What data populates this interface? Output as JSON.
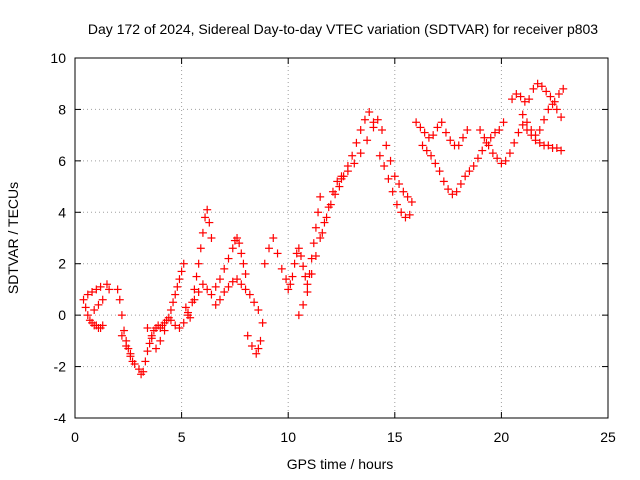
{
  "chart_data": {
    "type": "scatter",
    "title": "Day 172 of 2024, Sidereal Day-to-day VTEC variation (SDTVAR) for receiver p803",
    "xlabel": "GPS time / hours",
    "ylabel": "SDTVAR / TECUs",
    "xlim": [
      0,
      25
    ],
    "ylim": [
      -4,
      10
    ],
    "x_ticks": [
      0,
      5,
      10,
      15,
      20,
      25
    ],
    "y_ticks": [
      -4,
      -2,
      0,
      2,
      4,
      6,
      8,
      10
    ],
    "x_tick_labels": [
      "0",
      "5",
      "10",
      "15",
      "20",
      "25"
    ],
    "y_tick_labels": [
      "-4",
      "-2",
      "0",
      "2",
      "4",
      "6",
      "8",
      "10"
    ],
    "grid": true,
    "marker": "+",
    "series": [
      {
        "color": "#ff0000",
        "x": [
          0.4,
          0.5,
          0.6,
          0.7,
          0.8,
          0.9,
          1.0,
          1.1,
          1.2,
          1.3,
          0.6,
          0.8,
          1.0,
          1.2,
          1.5,
          1.6,
          0.9,
          1.1,
          1.3,
          2.0,
          2.1,
          2.2,
          2.3,
          2.4,
          2.5,
          2.6,
          2.7,
          2.2,
          2.4,
          2.6,
          2.8,
          3.0,
          3.1,
          3.2,
          3.3,
          3.4,
          3.5,
          3.6,
          3.7,
          3.8,
          3.9,
          4.0,
          4.1,
          4.2,
          4.3,
          4.4,
          3.4,
          3.6,
          3.8,
          4.0,
          4.2,
          4.5,
          4.6,
          4.7,
          4.8,
          4.9,
          5.0,
          5.1,
          5.2,
          5.3,
          5.4,
          4.5,
          4.7,
          4.9,
          5.1,
          5.3,
          5.5,
          5.6,
          5.7,
          5.8,
          5.9,
          6.0,
          6.1,
          6.2,
          6.3,
          6.4,
          5.6,
          5.8,
          6.0,
          6.2,
          6.4,
          6.6,
          6.8,
          7.0,
          7.2,
          7.4,
          7.5,
          7.6,
          7.7,
          7.8,
          7.9,
          8.0,
          6.6,
          6.8,
          7.0,
          7.2,
          7.4,
          7.6,
          7.8,
          8.0,
          8.2,
          8.4,
          8.6,
          8.8,
          8.1,
          8.3,
          8.5,
          8.6,
          8.7,
          8.9,
          9.1,
          9.3,
          9.5,
          9.7,
          9.9,
          10.0,
          10.1,
          10.2,
          10.3,
          10.4,
          10.5,
          10.6,
          10.7,
          10.8,
          10.9,
          11.0,
          11.1,
          11.2,
          11.3,
          11.4,
          11.5,
          10.5,
          10.7,
          10.9,
          11.1,
          11.3,
          11.5,
          11.7,
          11.9,
          12.1,
          12.3,
          12.5,
          11.6,
          11.8,
          12.0,
          12.2,
          12.4,
          12.6,
          12.8,
          13.0,
          13.2,
          13.4,
          13.6,
          13.8,
          14.0,
          12.5,
          12.8,
          13.1,
          13.4,
          13.7,
          14.0,
          14.2,
          14.4,
          14.6,
          14.8,
          15.0,
          15.2,
          15.4,
          15.6,
          15.8,
          14.3,
          14.5,
          14.7,
          14.9,
          15.1,
          15.3,
          15.5,
          15.7,
          16.0,
          16.2,
          16.4,
          16.6,
          16.8,
          17.0,
          17.2,
          17.4,
          17.6,
          17.8,
          18.0,
          18.2,
          18.4,
          16.3,
          16.5,
          16.7,
          16.9,
          17.1,
          17.3,
          17.5,
          17.7,
          17.9,
          18.1,
          18.3,
          18.5,
          18.7,
          18.9,
          19.1,
          19.3,
          19.5,
          19.7,
          19.9,
          20.1,
          19.0,
          19.2,
          19.4,
          19.6,
          19.8,
          20.0,
          20.2,
          20.4,
          20.6,
          20.8,
          21.0,
          21.2,
          21.4,
          21.6,
          21.8,
          22.0,
          22.2,
          22.4,
          22.6,
          22.8,
          20.5,
          20.7,
          20.9,
          21.1,
          21.3,
          21.5,
          21.7,
          21.9,
          22.1,
          22.3,
          22.5,
          22.7,
          22.9,
          21.0,
          21.2,
          21.4,
          21.6,
          21.8,
          22.0,
          22.2,
          22.4,
          22.6,
          22.8
        ],
        "y": [
          0.6,
          0.3,
          0.0,
          -0.2,
          -0.3,
          -0.4,
          -0.4,
          -0.5,
          -0.5,
          -0.4,
          0.8,
          0.9,
          1.0,
          1.1,
          1.2,
          1.0,
          0.2,
          0.4,
          0.6,
          1.0,
          0.6,
          0.0,
          -0.6,
          -1.0,
          -1.3,
          -1.6,
          -1.8,
          -0.8,
          -1.2,
          -1.5,
          -1.9,
          -2.1,
          -2.3,
          -2.2,
          -1.8,
          -1.4,
          -1.1,
          -0.8,
          -0.6,
          -0.5,
          -0.4,
          -0.5,
          -0.4,
          -0.3,
          -0.2,
          -0.1,
          -0.5,
          -0.9,
          -1.3,
          -1.0,
          -0.6,
          0.2,
          0.5,
          0.8,
          1.1,
          1.4,
          1.7,
          2.0,
          0.3,
          0.1,
          -0.1,
          -0.2,
          -0.4,
          -0.5,
          -0.3,
          0.0,
          0.5,
          1.0,
          1.5,
          2.0,
          2.6,
          3.2,
          3.8,
          4.1,
          3.6,
          3.0,
          0.6,
          0.9,
          1.2,
          1.0,
          0.8,
          1.1,
          1.4,
          1.8,
          2.2,
          2.6,
          2.9,
          3.0,
          2.8,
          2.4,
          2.0,
          1.6,
          0.4,
          0.6,
          0.9,
          1.1,
          1.3,
          1.4,
          1.2,
          1.0,
          0.8,
          0.5,
          0.2,
          -0.3,
          -0.8,
          -1.2,
          -1.5,
          -1.3,
          -1.0,
          2.0,
          2.6,
          3.0,
          2.4,
          1.8,
          1.4,
          1.0,
          1.2,
          1.5,
          2.0,
          2.4,
          2.6,
          2.3,
          1.9,
          1.5,
          1.2,
          1.6,
          2.2,
          2.8,
          3.4,
          4.0,
          4.6,
          0.0,
          0.4,
          0.9,
          1.6,
          2.3,
          3.0,
          3.6,
          4.2,
          4.8,
          5.2,
          5.4,
          3.2,
          3.8,
          4.3,
          4.7,
          5.0,
          5.4,
          5.8,
          6.2,
          6.7,
          7.2,
          7.6,
          7.9,
          7.5,
          5.3,
          5.6,
          5.9,
          6.3,
          6.8,
          7.3,
          7.6,
          7.2,
          6.6,
          6.0,
          5.4,
          5.1,
          4.8,
          4.6,
          4.4,
          6.2,
          5.8,
          5.3,
          4.8,
          4.3,
          4.0,
          3.8,
          3.9,
          7.5,
          7.3,
          7.1,
          6.9,
          7.0,
          7.3,
          7.5,
          7.1,
          6.8,
          6.6,
          6.6,
          6.9,
          7.2,
          6.6,
          6.4,
          6.2,
          5.9,
          5.6,
          5.2,
          4.9,
          4.7,
          4.8,
          5.1,
          5.4,
          5.6,
          5.8,
          6.1,
          6.4,
          6.7,
          6.9,
          7.1,
          7.2,
          7.5,
          7.2,
          6.9,
          6.6,
          6.3,
          6.1,
          5.9,
          6.0,
          6.3,
          6.7,
          7.1,
          7.4,
          7.2,
          7.0,
          6.8,
          6.7,
          6.6,
          6.6,
          6.5,
          6.5,
          6.4,
          8.4,
          8.6,
          8.5,
          8.3,
          8.4,
          8.8,
          9.0,
          8.9,
          8.7,
          8.5,
          8.3,
          8.6,
          8.8,
          7.8,
          7.5,
          7.2,
          7.0,
          7.2,
          7.6,
          8.0,
          8.2,
          8.0,
          7.7
        ]
      }
    ]
  }
}
